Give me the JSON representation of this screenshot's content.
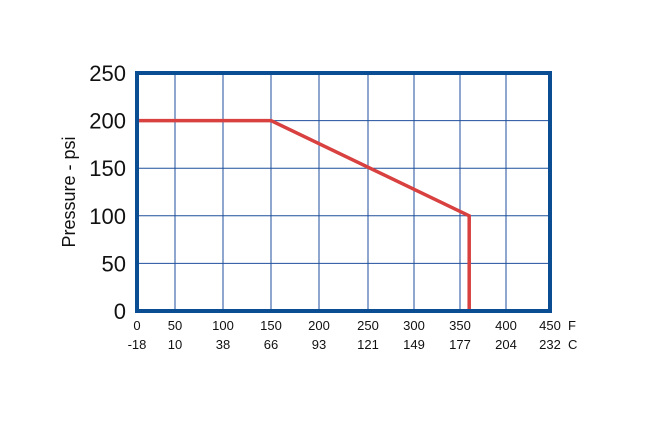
{
  "chart_data": {
    "type": "line",
    "title": "",
    "ylabel": "Pressure - psi",
    "xlabel": "",
    "x_unit_label": "F",
    "x2_unit_label": "C",
    "ylim": [
      0,
      250
    ],
    "xlim": [
      0,
      450
    ],
    "y_ticks": [
      "0",
      "50",
      "100",
      "150",
      "200",
      "250"
    ],
    "x_ticks_f": [
      "0",
      "50",
      "100",
      "150",
      "200",
      "250",
      "300",
      "350",
      "400",
      "450"
    ],
    "x_ticks_c": [
      "-18",
      "10",
      "38",
      "66",
      "93",
      "121",
      "149",
      "177",
      "204",
      "232"
    ],
    "grid": true,
    "series": [
      {
        "x": [
          0,
          150,
          360,
          360
        ],
        "y": [
          200,
          200,
          100,
          0
        ]
      }
    ],
    "colors": {
      "frame": "#0b4d92",
      "grid": "#1f4f9c",
      "line": "#d94040"
    }
  }
}
